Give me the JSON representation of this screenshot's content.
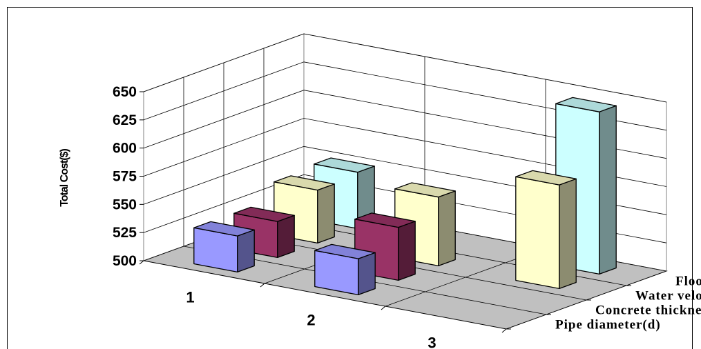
{
  "chart_data": {
    "type": "bar",
    "subtype": "3d-column",
    "title": "",
    "ylabel": "Total Cost($)",
    "xlabel": "",
    "categories": [
      "1",
      "2",
      "3"
    ],
    "series": [
      {
        "name": "Pipe diameter(d)",
        "color": "#9999ff",
        "values": [
          532,
          532,
          null
        ]
      },
      {
        "name": "Concrete thickness(h)",
        "color": "#993366",
        "values": [
          532,
          547,
          null
        ]
      },
      {
        "name": "Water velocity(u)",
        "color": "#ffffcc",
        "values": [
          547,
          561,
          592
        ]
      },
      {
        "name": "Floor finish(t)",
        "color": "#ccffff",
        "values": [
          550,
          null,
          644
        ]
      }
    ],
    "ylim": [
      500,
      650
    ],
    "yticks": [
      "500",
      "525",
      "550",
      "575",
      "600",
      "625",
      "650"
    ],
    "grid": true,
    "floor_color": "#c0c0c0"
  }
}
